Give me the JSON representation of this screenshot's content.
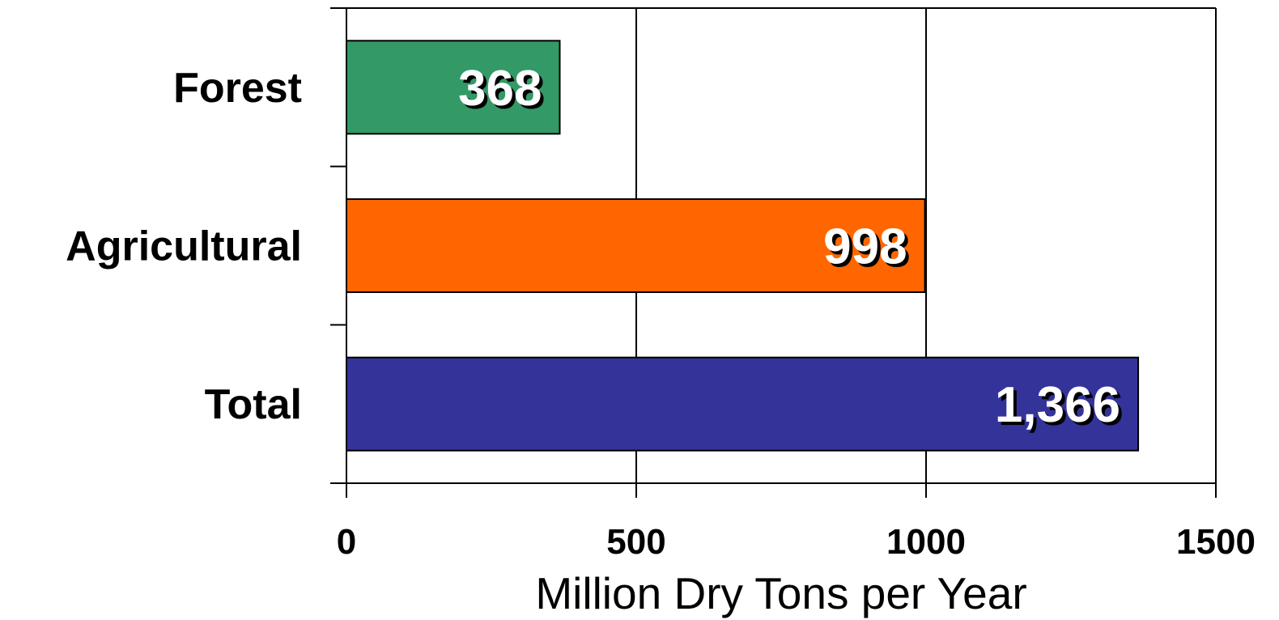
{
  "chart_data": {
    "type": "bar",
    "orientation": "horizontal",
    "categories": [
      "Forest",
      "Agricultural",
      "Total"
    ],
    "values": [
      368,
      998,
      1366
    ],
    "value_labels": [
      "368",
      "998",
      "1,366"
    ],
    "colors": [
      "#339966",
      "#ff6600",
      "#333399"
    ],
    "xlabel": "Million Dry Tons per Year",
    "xlim": [
      0,
      1500
    ],
    "xticks": [
      0,
      500,
      1000,
      1500
    ],
    "xtick_labels": [
      "0",
      "500",
      "1000",
      "1500"
    ],
    "grid": "vertical",
    "legend": "none"
  }
}
